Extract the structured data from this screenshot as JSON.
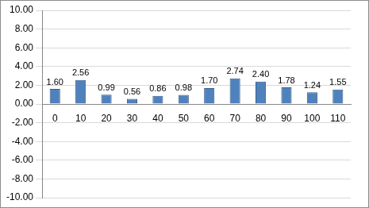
{
  "chart_data": {
    "type": "bar",
    "categories": [
      "0",
      "10",
      "20",
      "30",
      "40",
      "50",
      "60",
      "70",
      "80",
      "90",
      "100",
      "110"
    ],
    "values": [
      1.6,
      2.56,
      0.99,
      0.56,
      0.86,
      0.98,
      1.7,
      2.74,
      2.4,
      1.78,
      1.24,
      1.55
    ],
    "value_labels": [
      "1.60",
      "2.56",
      "0.99",
      "0.56",
      "0.86",
      "0.98",
      "1.70",
      "2.74",
      "2.40",
      "1.78",
      "1.24",
      "1.55"
    ],
    "color": "#4f81bd",
    "ylim": [
      -10,
      10
    ],
    "yticks": [
      {
        "value": -10,
        "label": "-10.00"
      },
      {
        "value": -8,
        "label": "-8.00"
      },
      {
        "value": -6,
        "label": "-6.00"
      },
      {
        "value": -4,
        "label": "-4.00"
      },
      {
        "value": -2,
        "label": "-2.00"
      },
      {
        "value": 0,
        "label": "0.00"
      },
      {
        "value": 2,
        "label": "2.00"
      },
      {
        "value": 4,
        "label": "4.00"
      },
      {
        "value": 6,
        "label": "6.00"
      },
      {
        "value": 8,
        "label": "8.00"
      },
      {
        "value": 10,
        "label": "10.00"
      }
    ],
    "grid": true,
    "data_labels": true
  }
}
